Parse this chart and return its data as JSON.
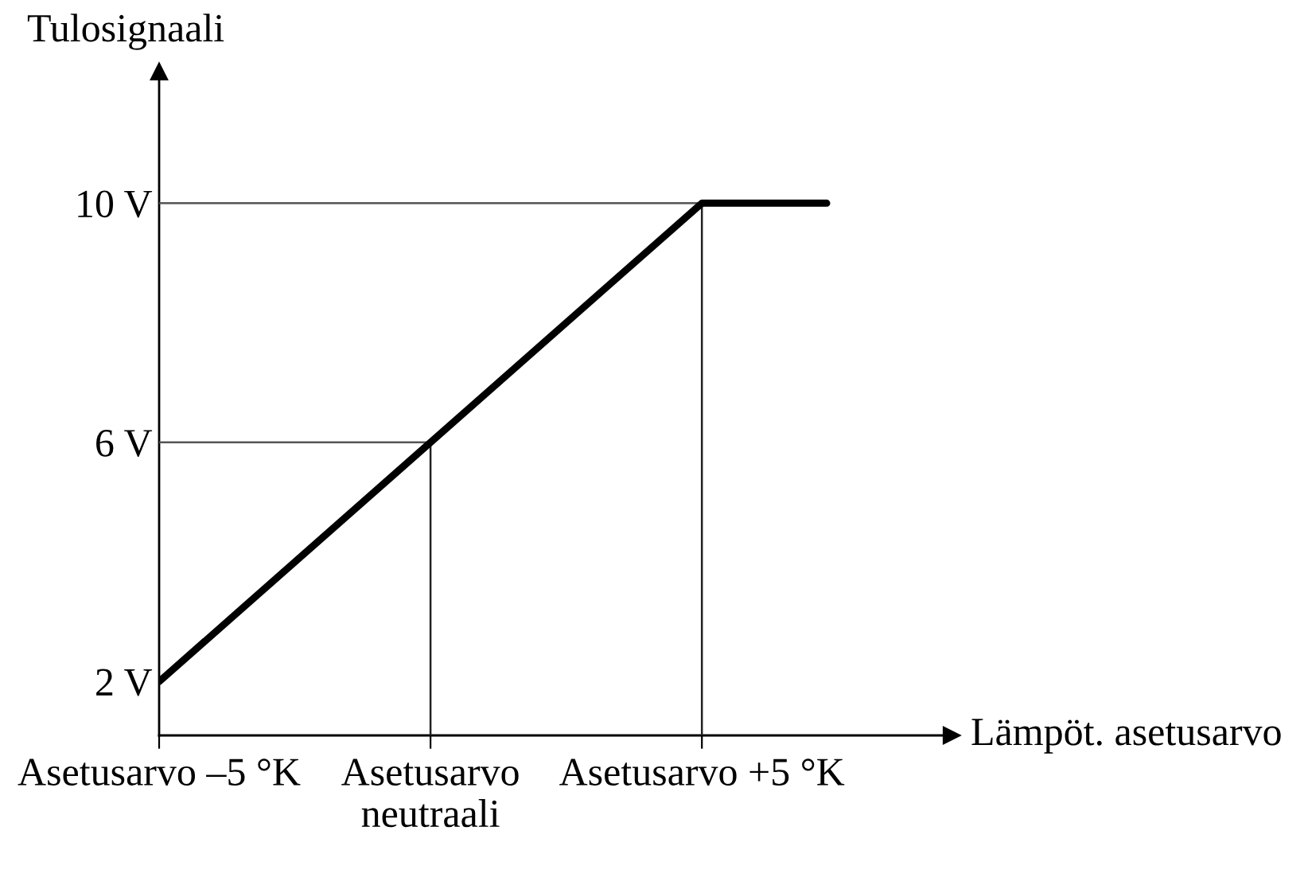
{
  "chart_data": {
    "type": "line",
    "xlabel": "Lämpöt. asetusarvo",
    "ylabel": "Tulosignaali",
    "x": [
      -5,
      5,
      7.3
    ],
    "values": [
      2,
      10,
      10
    ],
    "color": "#000000",
    "line_style": "solid",
    "xlim": [
      -5,
      9.6
    ],
    "ylim": [
      1.1,
      12.2
    ],
    "xticks": [
      {
        "value": -5,
        "label": "Asetusarvo –5 °K"
      },
      {
        "value": 0,
        "label": "Asetusarvo\nneutraali"
      },
      {
        "value": 5,
        "label": "Asetusarvo +5 °K"
      }
    ],
    "yticks": [
      {
        "value": 2,
        "label": "2 V"
      },
      {
        "value": 6,
        "label": "6 V"
      },
      {
        "value": 10,
        "label": "10 V"
      }
    ],
    "ref_lines": [
      {
        "axis": "y",
        "value": 10,
        "color": "#555555"
      },
      {
        "axis": "y",
        "value": 6,
        "color": "#555555"
      },
      {
        "axis": "x",
        "value": 0,
        "color": "#222222"
      },
      {
        "axis": "x",
        "value": 5,
        "color": "#222222"
      }
    ],
    "grid": false
  }
}
